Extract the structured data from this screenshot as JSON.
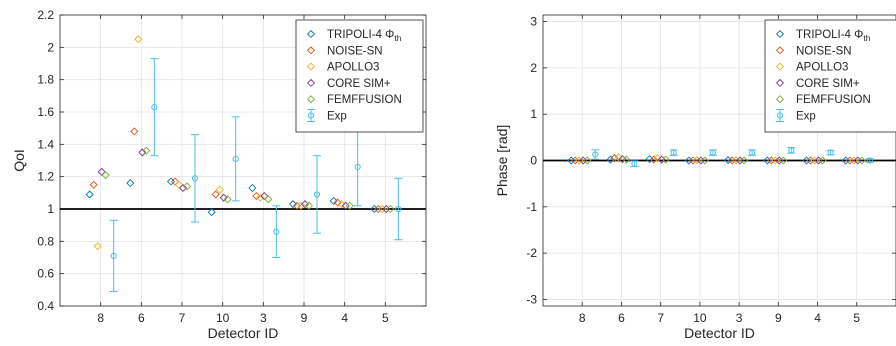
{
  "chart_data": [
    {
      "type": "scatter",
      "xlabel": "Detector ID",
      "ylabel": "QoI",
      "categories": [
        "8",
        "6",
        "7",
        "10",
        "3",
        "9",
        "4",
        "5"
      ],
      "ylim": [
        0.4,
        2.2
      ],
      "yticks": [
        "0.4",
        "0.6",
        "0.8",
        "1",
        "1.2",
        "1.4",
        "1.6",
        "1.8",
        "2",
        "2.2"
      ],
      "reference_line": 1,
      "grid": true,
      "legend_position": "top-right",
      "series": [
        {
          "name": "TRIPOLI-4 Φth",
          "color": "#0072BD",
          "values": [
            1.09,
            1.16,
            1.17,
            0.98,
            1.13,
            1.03,
            1.05,
            1.0
          ]
        },
        {
          "name": "NOISE-SN",
          "color": "#D95319",
          "values": [
            1.15,
            1.48,
            1.17,
            1.09,
            1.08,
            1.02,
            1.04,
            1.0
          ]
        },
        {
          "name": "APOLLO3",
          "color": "#EDB120",
          "values": [
            0.77,
            2.05,
            1.15,
            1.12,
            1.07,
            1.02,
            1.03,
            1.0
          ]
        },
        {
          "name": "CORE SIM+",
          "color": "#7E2F8E",
          "values": [
            1.23,
            1.35,
            1.13,
            1.07,
            1.08,
            1.03,
            1.02,
            1.0
          ]
        },
        {
          "name": "FEMFFUSION",
          "color": "#77AC30",
          "values": [
            1.21,
            1.36,
            1.14,
            1.06,
            1.06,
            1.02,
            1.02,
            1.0
          ]
        },
        {
          "name": "Exp",
          "color": "#4DBEEE",
          "values": [
            0.71,
            1.63,
            1.19,
            1.31,
            0.86,
            1.09,
            1.26,
            1.0
          ],
          "error": [
            0.22,
            0.3,
            0.27,
            0.26,
            0.16,
            0.24,
            0.24,
            0.19
          ]
        }
      ]
    },
    {
      "type": "scatter",
      "xlabel": "Detector ID",
      "ylabel": "Phase [rad]",
      "categories": [
        "8",
        "6",
        "7",
        "10",
        "3",
        "9",
        "4",
        "5"
      ],
      "ylim": [
        -3.14159,
        3.14159
      ],
      "yticks": [
        "-3",
        "-2",
        "-1",
        "0",
        "1",
        "2",
        "3"
      ],
      "reference_line": 0,
      "grid": true,
      "legend_position": "top-right",
      "series": [
        {
          "name": "TRIPOLI-4 Φth",
          "color": "#0072BD",
          "values": [
            0.0,
            0.02,
            0.03,
            0.0,
            0.01,
            0.0,
            0.0,
            0.0
          ]
        },
        {
          "name": "NOISE-SN",
          "color": "#D95319",
          "values": [
            0.0,
            0.05,
            0.02,
            0.0,
            0.0,
            0.0,
            0.0,
            0.0
          ]
        },
        {
          "name": "APOLLO3",
          "color": "#EDB120",
          "values": [
            0.0,
            0.07,
            0.05,
            0.01,
            0.01,
            0.0,
            0.0,
            0.0
          ]
        },
        {
          "name": "CORE SIM+",
          "color": "#7E2F8E",
          "values": [
            0.0,
            0.03,
            0.02,
            0.0,
            0.0,
            0.0,
            0.0,
            0.0
          ]
        },
        {
          "name": "FEMFFUSION",
          "color": "#77AC30",
          "values": [
            0.0,
            0.02,
            0.02,
            0.0,
            0.0,
            0.0,
            0.0,
            0.0
          ]
        },
        {
          "name": "Exp",
          "color": "#4DBEEE",
          "values": [
            0.13,
            -0.07,
            0.17,
            0.17,
            0.17,
            0.22,
            0.17,
            0.0
          ],
          "error": [
            0.1,
            0.06,
            0.06,
            0.06,
            0.06,
            0.06,
            0.05,
            0.04
          ]
        }
      ]
    }
  ]
}
